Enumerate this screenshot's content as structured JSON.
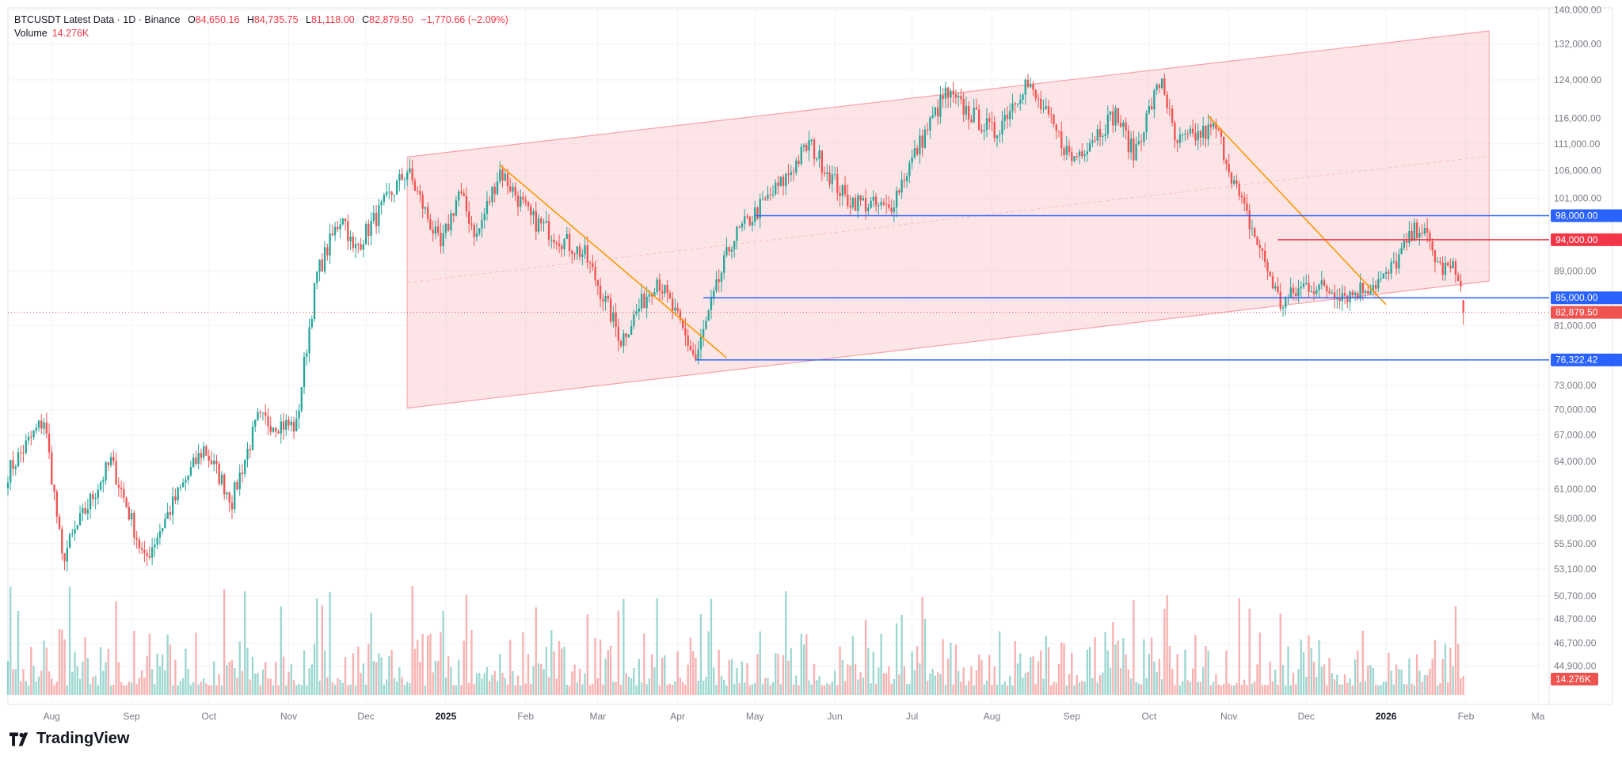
{
  "header": {
    "symbol": "BTCUSDT Latest Data · 1D · Binance",
    "open_key": "O",
    "open": "84,650.16",
    "high_key": "H",
    "high": "84,735.75",
    "low_key": "L",
    "low": "81,118.00",
    "close_key": "C",
    "close": "82,879.50",
    "change": "−1,770.66 (−2.09%)",
    "volume_label": "Volume",
    "volume_value": "14.276K"
  },
  "brand": {
    "name": "TradingView"
  },
  "colors": {
    "up": "#26a69a",
    "down": "#ef5350",
    "trendline": "#ff9800",
    "channel": "#f7a1a8",
    "support": "#2962ff",
    "resistance": "#f23645"
  },
  "chart_data": {
    "type": "candlestick",
    "symbol": "BTCUSDT",
    "interval": "1D",
    "y_scale": "log",
    "ylim": [
      42000,
      140500
    ],
    "x_range": [
      "2024-07-15",
      "2026-03-05"
    ],
    "y_ticks": [
      "140,000.00",
      "132,000.00",
      "124,000.00",
      "116,000.00",
      "111,000.00",
      "106,000.00",
      "101,000.00",
      "89,000.00",
      "81,000.00",
      "73,000.00",
      "70,000.00",
      "67,000.00",
      "64,000.00",
      "61,000.00",
      "58,000.00",
      "55,500.00",
      "53,100.00",
      "50,700.00",
      "48,700.00",
      "46,700.00",
      "44,900.00"
    ],
    "x_ticks": [
      {
        "label": "Aug",
        "date": "2024-08-01"
      },
      {
        "label": "Sep",
        "date": "2024-09-01"
      },
      {
        "label": "Oct",
        "date": "2024-10-01"
      },
      {
        "label": "Nov",
        "date": "2024-11-01"
      },
      {
        "label": "Dec",
        "date": "2024-12-01"
      },
      {
        "label": "2025",
        "date": "2025-01-01",
        "bold": true
      },
      {
        "label": "Feb",
        "date": "2025-02-01"
      },
      {
        "label": "Mar",
        "date": "2025-03-01"
      },
      {
        "label": "Apr",
        "date": "2025-04-01"
      },
      {
        "label": "May",
        "date": "2025-05-01"
      },
      {
        "label": "Jun",
        "date": "2025-06-01"
      },
      {
        "label": "Jul",
        "date": "2025-07-01"
      },
      {
        "label": "Aug",
        "date": "2025-08-01"
      },
      {
        "label": "Sep",
        "date": "2025-09-01"
      },
      {
        "label": "Oct",
        "date": "2025-10-01"
      },
      {
        "label": "Nov",
        "date": "2025-11-01"
      },
      {
        "label": "Dec",
        "date": "2025-12-01"
      },
      {
        "label": "2026",
        "date": "2026-01-01",
        "bold": true
      },
      {
        "label": "Feb",
        "date": "2026-02-01"
      },
      {
        "label": "Ma",
        "date": "2026-03-01"
      }
    ],
    "price_path": [
      [
        "2024-07-15",
        62800
      ],
      [
        "2024-07-29",
        68800
      ],
      [
        "2024-08-05",
        54000
      ],
      [
        "2024-08-24",
        64000
      ],
      [
        "2024-09-06",
        53800
      ],
      [
        "2024-09-29",
        65500
      ],
      [
        "2024-10-10",
        59800
      ],
      [
        "2024-10-20",
        68800
      ],
      [
        "2024-11-04",
        68000
      ],
      [
        "2024-11-12",
        88500
      ],
      [
        "2024-11-22",
        98500
      ],
      [
        "2024-11-26",
        92000
      ],
      [
        "2024-12-05",
        97800
      ],
      [
        "2024-12-17",
        106000
      ],
      [
        "2024-12-30",
        92500
      ],
      [
        "2025-01-06",
        102000
      ],
      [
        "2025-01-13",
        94500
      ],
      [
        "2025-01-22",
        106000
      ],
      [
        "2025-02-03",
        97500
      ],
      [
        "2025-02-24",
        91500
      ],
      [
        "2025-03-10",
        79000
      ],
      [
        "2025-03-24",
        88000
      ],
      [
        "2025-04-08",
        76300
      ],
      [
        "2025-04-22",
        93800
      ],
      [
        "2025-05-12",
        104000
      ],
      [
        "2025-05-22",
        111000
      ],
      [
        "2025-06-05",
        101000
      ],
      [
        "2025-06-22",
        99000
      ],
      [
        "2025-07-14",
        121000
      ],
      [
        "2025-08-02",
        113000
      ],
      [
        "2025-08-14",
        123500
      ],
      [
        "2025-09-01",
        108000
      ],
      [
        "2025-09-18",
        117000
      ],
      [
        "2025-09-25",
        109000
      ],
      [
        "2025-10-06",
        124500
      ],
      [
        "2025-10-11",
        111000
      ],
      [
        "2025-10-27",
        114000
      ],
      [
        "2025-11-05",
        101000
      ],
      [
        "2025-11-21",
        84000
      ],
      [
        "2025-12-01",
        87000
      ],
      [
        "2025-12-18",
        85500
      ],
      [
        "2026-01-01",
        88000
      ],
      [
        "2026-01-14",
        96500
      ],
      [
        "2026-01-22",
        89500
      ],
      [
        "2026-01-29",
        89000
      ],
      [
        "2026-01-31",
        82879.5
      ]
    ],
    "last": {
      "open": 84650.16,
      "high": 84735.75,
      "low": 81118.0,
      "close": 82879.5,
      "change": -1770.66,
      "change_pct": -2.09,
      "volume": "14.276K"
    },
    "drawings": {
      "ascending_channel": {
        "start_date": "2024-12-17",
        "end_date": "2026-02-10",
        "upper": [
          [
            "2024-12-17",
            108500
          ],
          [
            "2026-02-10",
            135000
          ]
        ],
        "lower": [
          [
            "2024-12-17",
            70200
          ],
          [
            "2026-02-10",
            87500
          ]
        ]
      },
      "downtrends": [
        [
          [
            "2025-01-22",
            107000
          ],
          [
            "2025-04-20",
            76600
          ]
        ],
        [
          [
            "2025-10-24",
            116500
          ],
          [
            "2026-01-01",
            84000
          ]
        ]
      ],
      "levels": [
        {
          "price": 98000,
          "label": "98,000.00",
          "color": "#2962ff",
          "from": "2025-05-01"
        },
        {
          "price": 94000,
          "label": "94,000.00",
          "color": "#f23645",
          "from": "2025-11-20"
        },
        {
          "price": 85000,
          "label": "85,000.00",
          "color": "#2962ff",
          "from": "2025-04-11"
        },
        {
          "price": 76322.42,
          "label": "76,322.42",
          "color": "#2962ff",
          "from": "2025-04-08"
        }
      ],
      "last_price_label": "82,879.50",
      "volume_label": "14.276K"
    }
  }
}
